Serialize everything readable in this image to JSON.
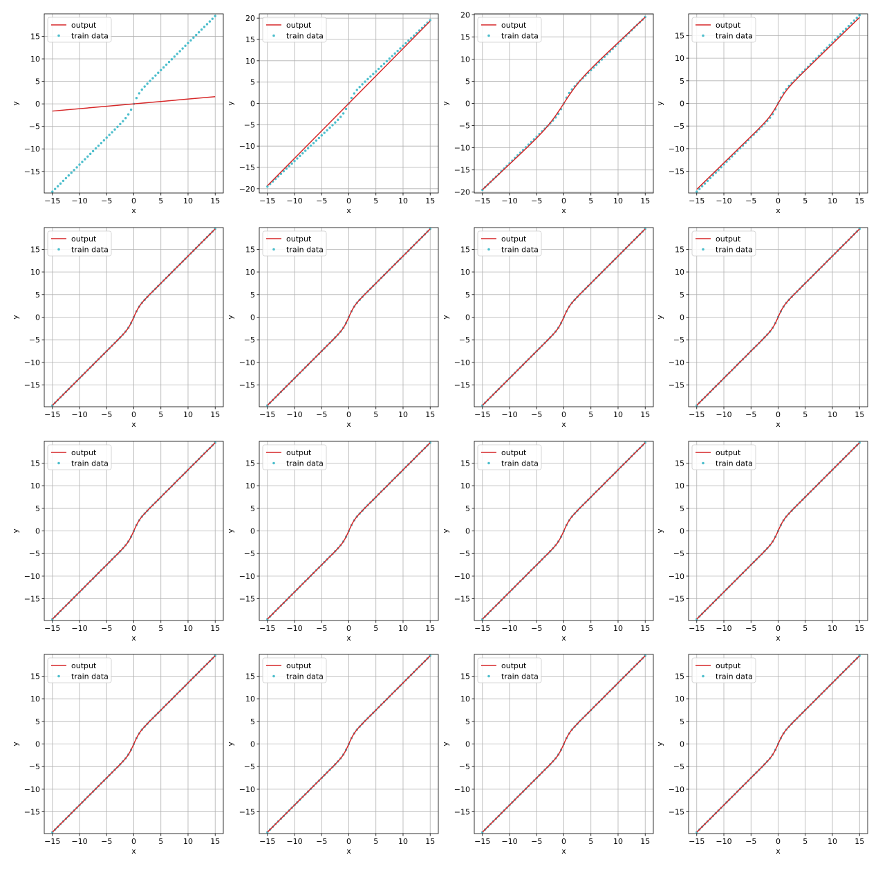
{
  "colors": {
    "output_line": "#d62728",
    "train_points": "#4cbecc",
    "grid": "#b0b0b0",
    "axes": "#000000",
    "legend_border": "#cccccc"
  },
  "chart_data": [
    {
      "type": "line",
      "panel_row": 1,
      "panel_col": 1,
      "xlabel": "x",
      "ylabel": "y",
      "xlim": [
        -16.5,
        16.5
      ],
      "ylim": [
        -19.8,
        20.0
      ],
      "xticks": [
        -15,
        -10,
        -5,
        0,
        5,
        10,
        15
      ],
      "yticks": [
        -15,
        -10,
        -5,
        0,
        5,
        10,
        15
      ],
      "grid": true,
      "legend_position": "upper-left",
      "series": [
        {
          "name": "output",
          "kind": "line",
          "x": [
            -15,
            15
          ],
          "y": [
            -1.6,
            1.6
          ]
        },
        {
          "name": "train data",
          "kind": "scatter",
          "function": "y = 1.2*x + 1.5*tanh(x)",
          "x_range": [
            -15,
            15
          ],
          "n_points": 61
        }
      ]
    },
    {
      "type": "line",
      "panel_row": 1,
      "panel_col": 2,
      "xlabel": "x",
      "ylabel": "y",
      "xlim": [
        -16.5,
        16.5
      ],
      "ylim": [
        -21.0,
        21.0
      ],
      "xticks": [
        -15,
        -10,
        -5,
        0,
        5,
        10,
        15
      ],
      "yticks": [
        -20,
        -15,
        -10,
        -5,
        0,
        5,
        10,
        15,
        20
      ],
      "grid": true,
      "legend_position": "upper-left",
      "series": [
        {
          "name": "output",
          "kind": "line",
          "x": [
            -15,
            15
          ],
          "y": [
            -19.3,
            19.3
          ]
        },
        {
          "name": "train data",
          "kind": "scatter",
          "function": "y = 1.2*x + 1.5*tanh(x)",
          "x_range": [
            -15,
            15
          ],
          "n_points": 61
        }
      ]
    },
    {
      "type": "line",
      "panel_row": 1,
      "panel_col": 3,
      "xlabel": "x",
      "ylabel": "y",
      "xlim": [
        -16.5,
        16.5
      ],
      "ylim": [
        -20.2,
        20.2
      ],
      "xticks": [
        -15,
        -10,
        -5,
        0,
        5,
        10,
        15
      ],
      "yticks": [
        -20,
        -15,
        -10,
        -5,
        0,
        5,
        10,
        15,
        20
      ],
      "grid": true,
      "legend_position": "upper-left",
      "series": [
        {
          "name": "output",
          "kind": "line",
          "function": "y = 1.15*x + 2.2*tanh(x/3)",
          "x_range": [
            -15,
            15
          ]
        },
        {
          "name": "train data",
          "kind": "scatter",
          "function": "y = 1.2*x + 1.5*tanh(x)",
          "x_range": [
            -15,
            15
          ],
          "n_points": 61
        }
      ]
    },
    {
      "type": "line",
      "panel_row": 1,
      "panel_col": 4,
      "xlabel": "x",
      "ylabel": "y",
      "xlim": [
        -16.5,
        16.5
      ],
      "ylim": [
        -19.8,
        19.8
      ],
      "xticks": [
        -15,
        -10,
        -5,
        0,
        5,
        10,
        15
      ],
      "yticks": [
        -15,
        -10,
        -5,
        0,
        5,
        10,
        15
      ],
      "grid": true,
      "legend_position": "upper-left",
      "series": [
        {
          "name": "output",
          "kind": "line",
          "function": "y = 1.17*x + 1.45*tanh(x/1.6)",
          "x_range": [
            -15,
            15
          ]
        },
        {
          "name": "train data",
          "kind": "scatter",
          "function": "y = 1.2*x + 1.5*tanh(x)",
          "x_range": [
            -15,
            15
          ],
          "n_points": 61
        }
      ]
    },
    {
      "type": "line",
      "panel_row": 2,
      "panel_col": 1,
      "xlabel": "x",
      "ylabel": "y",
      "xlim": [
        -16.5,
        16.5
      ],
      "ylim": [
        -19.8,
        19.8
      ],
      "xticks": [
        -15,
        -10,
        -5,
        0,
        5,
        10,
        15
      ],
      "yticks": [
        -15,
        -10,
        -5,
        0,
        5,
        10,
        15
      ],
      "grid": true,
      "legend_position": "upper-left",
      "series": [
        {
          "name": "output",
          "kind": "line",
          "function": "y = 1.2*x + 1.5*tanh(x)",
          "x_range": [
            -15,
            15
          ]
        },
        {
          "name": "train data",
          "kind": "scatter",
          "function": "y = 1.2*x + 1.5*tanh(x)",
          "x_range": [
            -15,
            15
          ],
          "n_points": 61
        }
      ]
    },
    {
      "type": "line",
      "panel_row": 2,
      "panel_col": 2,
      "xlabel": "x",
      "ylabel": "y",
      "xlim": [
        -16.5,
        16.5
      ],
      "ylim": [
        -19.8,
        19.8
      ],
      "xticks": [
        -15,
        -10,
        -5,
        0,
        5,
        10,
        15
      ],
      "yticks": [
        -15,
        -10,
        -5,
        0,
        5,
        10,
        15
      ],
      "grid": true,
      "legend_position": "upper-left",
      "series": [
        {
          "name": "output",
          "kind": "line",
          "function": "y = 1.2*x + 1.5*tanh(x)",
          "x_range": [
            -15,
            15
          ]
        },
        {
          "name": "train data",
          "kind": "scatter",
          "function": "y = 1.2*x + 1.5*tanh(x)",
          "x_range": [
            -15,
            15
          ],
          "n_points": 61
        }
      ]
    },
    {
      "type": "line",
      "panel_row": 2,
      "panel_col": 3,
      "xlabel": "x",
      "ylabel": "y",
      "xlim": [
        -16.5,
        16.5
      ],
      "ylim": [
        -19.8,
        19.8
      ],
      "xticks": [
        -15,
        -10,
        -5,
        0,
        5,
        10,
        15
      ],
      "yticks": [
        -15,
        -10,
        -5,
        0,
        5,
        10,
        15
      ],
      "grid": true,
      "legend_position": "upper-left",
      "series": [
        {
          "name": "output",
          "kind": "line",
          "function": "y = 1.2*x + 1.5*tanh(x)",
          "x_range": [
            -15,
            15
          ]
        },
        {
          "name": "train data",
          "kind": "scatter",
          "function": "y = 1.2*x + 1.5*tanh(x)",
          "x_range": [
            -15,
            15
          ],
          "n_points": 61
        }
      ]
    },
    {
      "type": "line",
      "panel_row": 2,
      "panel_col": 4,
      "xlabel": "x",
      "ylabel": "y",
      "xlim": [
        -16.5,
        16.5
      ],
      "ylim": [
        -19.8,
        19.8
      ],
      "xticks": [
        -15,
        -10,
        -5,
        0,
        5,
        10,
        15
      ],
      "yticks": [
        -15,
        -10,
        -5,
        0,
        5,
        10,
        15
      ],
      "grid": true,
      "legend_position": "upper-left",
      "series": [
        {
          "name": "output",
          "kind": "line",
          "function": "y = 1.2*x + 1.5*tanh(x)",
          "x_range": [
            -15,
            15
          ]
        },
        {
          "name": "train data",
          "kind": "scatter",
          "function": "y = 1.2*x + 1.5*tanh(x)",
          "x_range": [
            -15,
            15
          ],
          "n_points": 61
        }
      ]
    },
    {
      "type": "line",
      "panel_row": 3,
      "panel_col": 1,
      "xlabel": "x",
      "ylabel": "y",
      "xlim": [
        -16.5,
        16.5
      ],
      "ylim": [
        -19.8,
        19.8
      ],
      "xticks": [
        -15,
        -10,
        -5,
        0,
        5,
        10,
        15
      ],
      "yticks": [
        -15,
        -10,
        -5,
        0,
        5,
        10,
        15
      ],
      "grid": true,
      "legend_position": "upper-left",
      "series": [
        {
          "name": "output",
          "kind": "line",
          "function": "y = 1.2*x + 1.5*tanh(x)",
          "x_range": [
            -15,
            15
          ]
        },
        {
          "name": "train data",
          "kind": "scatter",
          "function": "y = 1.2*x + 1.5*tanh(x)",
          "x_range": [
            -15,
            15
          ],
          "n_points": 61
        }
      ]
    },
    {
      "type": "line",
      "panel_row": 3,
      "panel_col": 2,
      "xlabel": "x",
      "ylabel": "y",
      "xlim": [
        -16.5,
        16.5
      ],
      "ylim": [
        -19.8,
        19.8
      ],
      "xticks": [
        -15,
        -10,
        -5,
        0,
        5,
        10,
        15
      ],
      "yticks": [
        -15,
        -10,
        -5,
        0,
        5,
        10,
        15
      ],
      "grid": true,
      "legend_position": "upper-left",
      "series": [
        {
          "name": "output",
          "kind": "line",
          "function": "y = 1.2*x + 1.5*tanh(x)",
          "x_range": [
            -15,
            15
          ]
        },
        {
          "name": "train data",
          "kind": "scatter",
          "function": "y = 1.2*x + 1.5*tanh(x)",
          "x_range": [
            -15,
            15
          ],
          "n_points": 61
        }
      ]
    },
    {
      "type": "line",
      "panel_row": 3,
      "panel_col": 3,
      "xlabel": "x",
      "ylabel": "y",
      "xlim": [
        -16.5,
        16.5
      ],
      "ylim": [
        -19.8,
        19.8
      ],
      "xticks": [
        -15,
        -10,
        -5,
        0,
        5,
        10,
        15
      ],
      "yticks": [
        -15,
        -10,
        -5,
        0,
        5,
        10,
        15
      ],
      "grid": true,
      "legend_position": "upper-left",
      "series": [
        {
          "name": "output",
          "kind": "line",
          "function": "y = 1.2*x + 1.5*tanh(x)",
          "x_range": [
            -15,
            15
          ]
        },
        {
          "name": "train data",
          "kind": "scatter",
          "function": "y = 1.2*x + 1.5*tanh(x)",
          "x_range": [
            -15,
            15
          ],
          "n_points": 61
        }
      ]
    },
    {
      "type": "line",
      "panel_row": 3,
      "panel_col": 4,
      "xlabel": "x",
      "ylabel": "y",
      "xlim": [
        -16.5,
        16.5
      ],
      "ylim": [
        -19.8,
        19.8
      ],
      "xticks": [
        -15,
        -10,
        -5,
        0,
        5,
        10,
        15
      ],
      "yticks": [
        -15,
        -10,
        -5,
        0,
        5,
        10,
        15
      ],
      "grid": true,
      "legend_position": "upper-left",
      "series": [
        {
          "name": "output",
          "kind": "line",
          "function": "y = 1.2*x + 1.5*tanh(x)",
          "x_range": [
            -15,
            15
          ]
        },
        {
          "name": "train data",
          "kind": "scatter",
          "function": "y = 1.2*x + 1.5*tanh(x)",
          "x_range": [
            -15,
            15
          ],
          "n_points": 61
        }
      ]
    },
    {
      "type": "line",
      "panel_row": 4,
      "panel_col": 1,
      "xlabel": "x",
      "ylabel": "y",
      "xlim": [
        -16.5,
        16.5
      ],
      "ylim": [
        -19.8,
        19.8
      ],
      "xticks": [
        -15,
        -10,
        -5,
        0,
        5,
        10,
        15
      ],
      "yticks": [
        -15,
        -10,
        -5,
        0,
        5,
        10,
        15
      ],
      "grid": true,
      "legend_position": "upper-left",
      "series": [
        {
          "name": "output",
          "kind": "line",
          "function": "y = 1.2*x + 1.5*tanh(x)",
          "x_range": [
            -15,
            15
          ]
        },
        {
          "name": "train data",
          "kind": "scatter",
          "function": "y = 1.2*x + 1.5*tanh(x)",
          "x_range": [
            -15,
            15
          ],
          "n_points": 61
        }
      ]
    },
    {
      "type": "line",
      "panel_row": 4,
      "panel_col": 2,
      "xlabel": "x",
      "ylabel": "y",
      "xlim": [
        -16.5,
        16.5
      ],
      "ylim": [
        -19.8,
        19.8
      ],
      "xticks": [
        -15,
        -10,
        -5,
        0,
        5,
        10,
        15
      ],
      "yticks": [
        -15,
        -10,
        -5,
        0,
        5,
        10,
        15
      ],
      "grid": true,
      "legend_position": "upper-left",
      "series": [
        {
          "name": "output",
          "kind": "line",
          "function": "y = 1.2*x + 1.5*tanh(x)",
          "x_range": [
            -15,
            15
          ]
        },
        {
          "name": "train data",
          "kind": "scatter",
          "function": "y = 1.2*x + 1.5*tanh(x)",
          "x_range": [
            -15,
            15
          ],
          "n_points": 61
        }
      ]
    },
    {
      "type": "line",
      "panel_row": 4,
      "panel_col": 3,
      "xlabel": "x",
      "ylabel": "y",
      "xlim": [
        -16.5,
        16.5
      ],
      "ylim": [
        -19.8,
        19.8
      ],
      "xticks": [
        -15,
        -10,
        -5,
        0,
        5,
        10,
        15
      ],
      "yticks": [
        -15,
        -10,
        -5,
        0,
        5,
        10,
        15
      ],
      "grid": true,
      "legend_position": "upper-left",
      "series": [
        {
          "name": "output",
          "kind": "line",
          "function": "y = 1.2*x + 1.5*tanh(x)",
          "x_range": [
            -15,
            15
          ]
        },
        {
          "name": "train data",
          "kind": "scatter",
          "function": "y = 1.2*x + 1.5*tanh(x)",
          "x_range": [
            -15,
            15
          ],
          "n_points": 61
        }
      ]
    },
    {
      "type": "line",
      "panel_row": 4,
      "panel_col": 4,
      "xlabel": "x",
      "ylabel": "y",
      "xlim": [
        -16.5,
        16.5
      ],
      "ylim": [
        -19.8,
        19.8
      ],
      "xticks": [
        -15,
        -10,
        -5,
        0,
        5,
        10,
        15
      ],
      "yticks": [
        -15,
        -10,
        -5,
        0,
        5,
        10,
        15
      ],
      "grid": true,
      "legend_position": "upper-left",
      "series": [
        {
          "name": "output",
          "kind": "line",
          "function": "y = 1.2*x + 1.5*tanh(x)",
          "x_range": [
            -15,
            15
          ]
        },
        {
          "name": "train data",
          "kind": "scatter",
          "function": "y = 1.2*x + 1.5*tanh(x)",
          "x_range": [
            -15,
            15
          ],
          "n_points": 61
        }
      ]
    }
  ]
}
